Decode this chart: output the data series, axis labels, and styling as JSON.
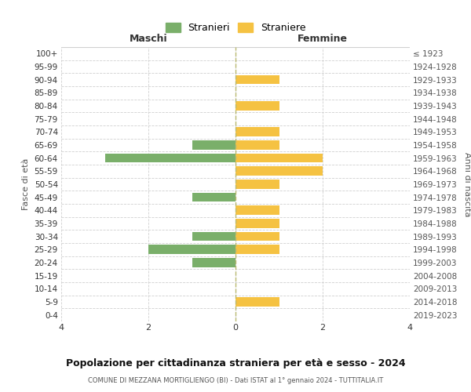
{
  "age_groups": [
    "100+",
    "95-99",
    "90-94",
    "85-89",
    "80-84",
    "75-79",
    "70-74",
    "65-69",
    "60-64",
    "55-59",
    "50-54",
    "45-49",
    "40-44",
    "35-39",
    "30-34",
    "25-29",
    "20-24",
    "15-19",
    "10-14",
    "5-9",
    "0-4"
  ],
  "birth_years": [
    "≤ 1923",
    "1924-1928",
    "1929-1933",
    "1934-1938",
    "1939-1943",
    "1944-1948",
    "1949-1953",
    "1954-1958",
    "1959-1963",
    "1964-1968",
    "1969-1973",
    "1974-1978",
    "1979-1983",
    "1984-1988",
    "1989-1993",
    "1994-1998",
    "1999-2003",
    "2004-2008",
    "2009-2013",
    "2014-2018",
    "2019-2023"
  ],
  "maschi": [
    0,
    0,
    0,
    0,
    0,
    0,
    0,
    -1,
    -3,
    0,
    0,
    -1,
    0,
    0,
    -1,
    -2,
    -1,
    0,
    0,
    0,
    0
  ],
  "femmine": [
    0,
    0,
    1,
    0,
    1,
    0,
    1,
    1,
    2,
    2,
    1,
    0,
    1,
    1,
    1,
    1,
    0,
    0,
    0,
    1,
    0
  ],
  "color_maschi": "#7aaf6a",
  "color_femmine": "#f5c242",
  "title": "Popolazione per cittadinanza straniera per età e sesso - 2024",
  "subtitle": "COMUNE DI MEZZANA MORTIGLIENGO (BI) - Dati ISTAT al 1° gennaio 2024 - TUTTITALIA.IT",
  "xlabel_left": "Maschi",
  "xlabel_right": "Femmine",
  "ylabel_left": "Fasce di età",
  "ylabel_right": "Anni di nascita",
  "legend_maschi": "Stranieri",
  "legend_femmine": "Straniere",
  "xlim": [
    -4,
    4
  ],
  "xticks": [
    -4,
    -2,
    0,
    2,
    4
  ],
  "xticklabels": [
    "4",
    "2",
    "0",
    "2",
    "4"
  ],
  "bg_color": "#ffffff",
  "grid_color": "#d0d0d0"
}
